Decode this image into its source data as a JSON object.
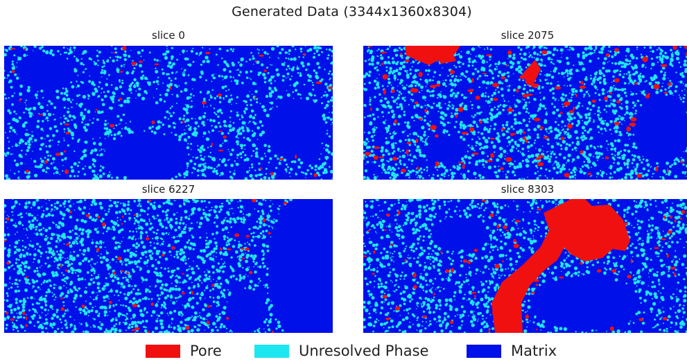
{
  "figure": {
    "title": "Generated Data (3344x1360x8304)"
  },
  "panels": [
    {
      "title": "slice 0"
    },
    {
      "title": "slice 2075"
    },
    {
      "title": "slice 6227"
    },
    {
      "title": "slice 8303"
    }
  ],
  "legend": {
    "items": [
      {
        "label": "Pore",
        "color": "#f01010"
      },
      {
        "label": "Unresolved Phase",
        "color": "#1ee6f0"
      },
      {
        "label": "Matrix",
        "color": "#0010e8"
      }
    ]
  },
  "colors": {
    "pore": "#f01010",
    "unresolved": "#1ee6f0",
    "matrix": "#0010e8"
  }
}
